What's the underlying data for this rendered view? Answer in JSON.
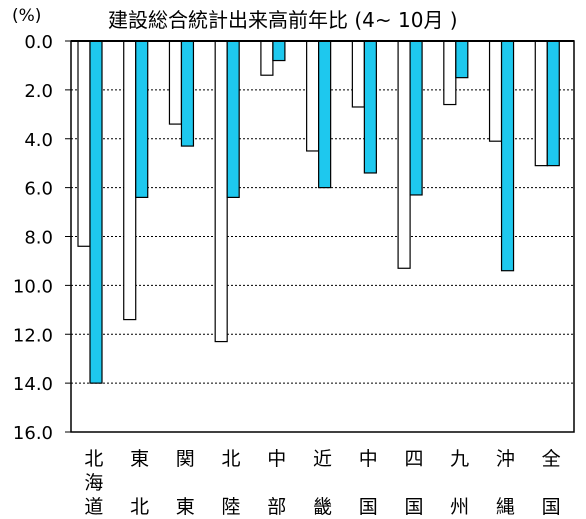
{
  "chart_data": {
    "type": "bar",
    "title": "建設総合統計出来高前年比 (4~ 10月 )",
    "unit_label": "(%)",
    "ylim": [
      0,
      16
    ],
    "y_ticks": [
      "0.0",
      "2.0",
      "4.0",
      "6.0",
      "8.0",
      "10.0",
      "12.0",
      "14.0",
      "16.0"
    ],
    "y_inverted": true,
    "grid": true,
    "categories": [
      "北\n海\n道",
      "東\n \n北",
      "関\n \n東",
      "北\n \n陸",
      "中\n \n部",
      "近\n \n畿",
      "中\n \n国",
      "四\n \n国",
      "九\n \n州",
      "沖\n \n縄",
      "全\n \n国"
    ],
    "series": [
      {
        "values": [
          8.4,
          11.4,
          3.4,
          12.3,
          1.4,
          4.5,
          2.7,
          9.3,
          2.6,
          4.1,
          5.1
        ]
      },
      {
        "values": [
          14.0,
          6.4,
          4.3,
          6.4,
          0.8,
          6.0,
          5.4,
          6.3,
          1.5,
          9.4,
          5.1
        ]
      }
    ],
    "colors": {
      "series0_fill": "#ffffff",
      "series1_fill": "#1ec8ee",
      "bar_stroke": "#000000",
      "grid": "#000000"
    }
  }
}
